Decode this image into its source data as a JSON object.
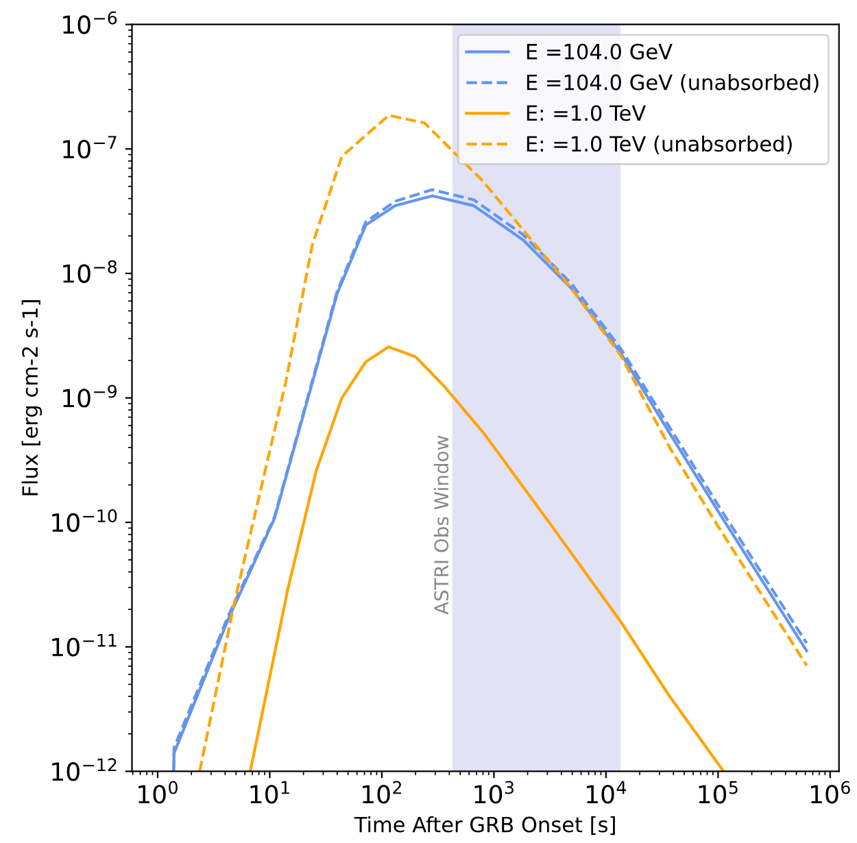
{
  "chart_data": {
    "type": "line",
    "xlabel": "Time After GRB Onset [s]",
    "ylabel": "Flux [erg cm-2 s-1]",
    "log": "xy",
    "grid": false,
    "legend": "top right",
    "marker": "none",
    "xlim": [
      0.59,
      1200000
    ],
    "ylim": [
      1e-12,
      1e-06
    ],
    "xticks": [
      {
        "value": 1,
        "label": "10$^{0}$"
      },
      {
        "value": 10,
        "label": "10$^{1}$"
      },
      {
        "value": 100,
        "label": "10$^{2}$"
      },
      {
        "value": 1000,
        "label": "10$^{3}$"
      },
      {
        "value": 10000,
        "label": "10$^{4}$"
      },
      {
        "value": 100000,
        "label": "10$^{5}$"
      },
      {
        "value": 1000000,
        "label": "10$^{6}$"
      }
    ],
    "yticks": [
      {
        "value": 1e-12,
        "label": "10$^{−12}$"
      },
      {
        "value": 1e-11,
        "label": "10$^{−11}$"
      },
      {
        "value": 1e-10,
        "label": "10$^{−10}$"
      },
      {
        "value": 1e-09,
        "label": "10$^{−9}$"
      },
      {
        "value": 1e-08,
        "label": "10$^{−8}$"
      },
      {
        "value": 1e-07,
        "label": "10$^{−7}$"
      },
      {
        "value": 1e-06,
        "label": "10$^{−6}$"
      }
    ],
    "bands": [
      {
        "axis": "x",
        "from": 425,
        "to": 13500,
        "label": "ASTRI Obs Window",
        "color": "#e2e2f6"
      }
    ],
    "series": [
      {
        "name": "E =104.0 GeV",
        "color": "#6495ed",
        "line_style": "solid",
        "x": [
          1.39,
          1.4,
          4.3,
          11,
          40,
          72,
          132,
          282,
          661,
          1820,
          4900,
          13500,
          37000,
          100000,
          617000
        ],
        "values": [
          1e-12,
          1.4e-12,
          1.7e-11,
          1.07e-10,
          6.9e-09,
          2.45e-08,
          3.5e-08,
          4.2e-08,
          3.5e-08,
          1.86e-08,
          7.6e-09,
          2.3e-09,
          5.2e-10,
          1.23e-10,
          9.3e-12
        ]
      },
      {
        "name": "E =104.0 GeV (unabsorbed)",
        "color": "#6495ed",
        "line_style": "dashed",
        "x": [
          1.39,
          1.4,
          4.3,
          11,
          40,
          72,
          132,
          282,
          661,
          1820,
          4900,
          13500,
          37000,
          100000,
          617000
        ],
        "values": [
          1e-12,
          1.55e-12,
          1.8e-11,
          1.1e-10,
          7.2e-09,
          2.6e-08,
          3.8e-08,
          4.7e-08,
          3.9e-08,
          2.05e-08,
          8.3e-09,
          2.5e-09,
          5.8e-10,
          1.38e-10,
          1.07e-11
        ]
      },
      {
        "name": "E: =1.0 TeV",
        "color": "#ffa500",
        "line_style": "solid",
        "x": [
          6.7,
          14.5,
          26,
          44,
          72,
          115,
          200,
          363,
          813,
          3300,
          13500,
          37000,
          112000
        ],
        "values": [
          1e-12,
          2.9e-11,
          2.6e-10,
          1e-09,
          1.95e-09,
          2.57e-09,
          2.14e-09,
          1.23e-09,
          5.2e-10,
          9.3e-11,
          1.6e-11,
          4e-12,
          1e-12
        ]
      },
      {
        "name": "E: =1.0 TeV (unabsorbed)",
        "color": "#ffa500",
        "line_style": "dashed",
        "x": [
          2.37,
          4.8,
          13.8,
          24,
          44,
          115,
          240,
          800,
          1820,
          4900,
          13500,
          37000,
          100000,
          617000
        ],
        "values": [
          1e-12,
          2.2e-11,
          1.3e-09,
          1.7e-08,
          8.7e-08,
          1.86e-07,
          1.62e-07,
          5.5e-08,
          2.24e-08,
          7.6e-09,
          2.2e-09,
          4e-10,
          9.3e-11,
          7.1e-12
        ]
      }
    ]
  }
}
